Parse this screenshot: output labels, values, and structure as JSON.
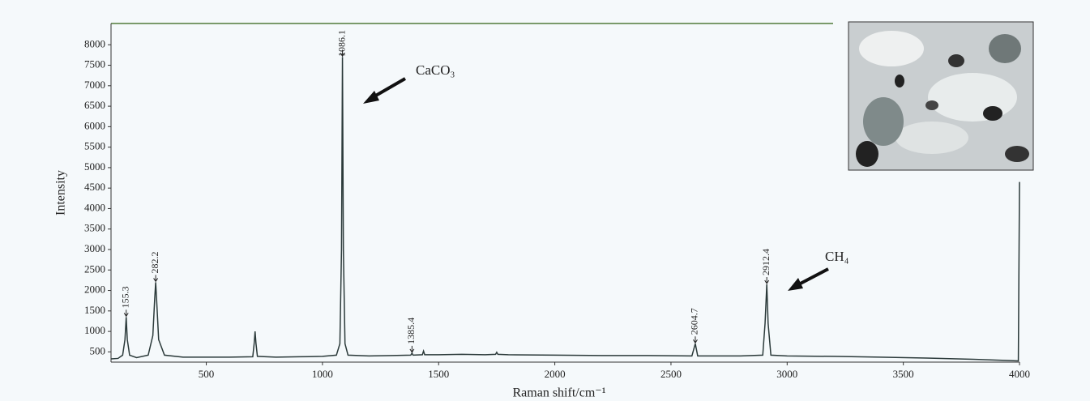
{
  "chart_data": {
    "type": "line",
    "x_label": "Raman shift/cm⁻¹",
    "y_label": "Intensity",
    "xlim": [
      90,
      4000
    ],
    "ylim": [
      250,
      8500
    ],
    "xticks": [
      500,
      1000,
      1500,
      2000,
      2500,
      3000,
      3500,
      4000
    ],
    "yticks": [
      500,
      1000,
      1500,
      2000,
      2500,
      3000,
      3500,
      4000,
      4500,
      5000,
      5500,
      6000,
      6500,
      7000,
      7500,
      8000
    ],
    "grid": false,
    "series": [
      {
        "color": "#2b3a3a",
        "x": [
          90,
          120,
          140,
          150,
          155.3,
          160,
          170,
          200,
          250,
          270,
          278,
          282.2,
          286,
          295,
          320,
          400,
          500,
          600,
          700,
          706,
          710,
          714,
          720,
          800,
          900,
          1000,
          1060,
          1075,
          1082,
          1086.1,
          1090,
          1097,
          1110,
          1200,
          1300,
          1380,
          1385.4,
          1390,
          1430,
          1435,
          1440,
          1500,
          1600,
          1700,
          1745,
          1750,
          1755,
          1800,
          2000,
          2200,
          2400,
          2590,
          2604.7,
          2615,
          2800,
          2895,
          2905,
          2912.4,
          2918,
          2930,
          3000,
          3200,
          3400,
          3600,
          3800,
          3950,
          3995,
          4000
        ],
        "values": [
          330,
          340,
          420,
          800,
          1350,
          800,
          420,
          360,
          420,
          900,
          1800,
          2200,
          1800,
          800,
          420,
          370,
          370,
          370,
          380,
          700,
          1000,
          700,
          390,
          370,
          380,
          390,
          420,
          700,
          3000,
          7700,
          3000,
          700,
          420,
          400,
          410,
          420,
          470,
          420,
          430,
          520,
          430,
          430,
          440,
          430,
          440,
          490,
          440,
          430,
          420,
          410,
          410,
          400,
          700,
          400,
          400,
          420,
          1200,
          2150,
          1200,
          420,
          400,
          390,
          370,
          350,
          320,
          290,
          280,
          4650
        ]
      }
    ],
    "peaks": {
      "x": [
        155.3,
        282.2,
        1086.1,
        1385.4,
        2604.7,
        2912.4
      ],
      "y": [
        1350,
        2200,
        7700,
        470,
        700,
        2150
      ]
    },
    "annotations": [
      "CaCO₃",
      "CH₄"
    ]
  }
}
